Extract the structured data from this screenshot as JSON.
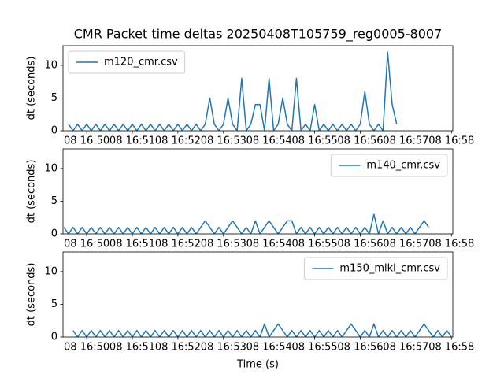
{
  "chart_data": [
    {
      "type": "line",
      "title": "CMR Packet time deltas 20250408T105759_reg0005-8007",
      "y_label": "dt (seconds)",
      "xlim": [
        1009.48,
        1018.03
      ],
      "ylim": [
        0,
        13
      ],
      "yticks": [
        0,
        5,
        10
      ],
      "xticks": [
        {
          "value": 1010,
          "label": "08 16:50"
        },
        {
          "value": 1011,
          "label": "08 16:51"
        },
        {
          "value": 1012,
          "label": "08 16:52"
        },
        {
          "value": 1013,
          "label": "08 16:53"
        },
        {
          "value": 1014,
          "label": "08 16:54"
        },
        {
          "value": 1015,
          "label": "08 16:55"
        },
        {
          "value": 1016,
          "label": "08 16:56"
        },
        {
          "value": 1017,
          "label": "08 16:57"
        },
        {
          "value": 1018,
          "label": "08 16:58"
        }
      ],
      "legend": "upper left",
      "series": [
        {
          "name": "m120_cmr.csv",
          "color": "#1f77b4",
          "x": [
            1009.6,
            1009.7,
            1009.8,
            1009.9,
            1010.0,
            1010.1,
            1010.2,
            1010.3,
            1010.4,
            1010.5,
            1010.6,
            1010.7,
            1010.8,
            1010.9,
            1011.0,
            1011.1,
            1011.2,
            1011.3,
            1011.4,
            1011.5,
            1011.6,
            1011.7,
            1011.8,
            1011.9,
            1012.0,
            1012.1,
            1012.2,
            1012.3,
            1012.4,
            1012.5,
            1012.6,
            1012.7,
            1012.8,
            1012.9,
            1013.0,
            1013.1,
            1013.2,
            1013.3,
            1013.4,
            1013.5,
            1013.6,
            1013.7,
            1013.8,
            1013.9,
            1014.0,
            1014.1,
            1014.2,
            1014.3,
            1014.4,
            1014.5,
            1014.6,
            1014.7,
            1014.8,
            1014.9,
            1015.0,
            1015.1,
            1015.2,
            1015.3,
            1015.4,
            1015.5,
            1015.6,
            1015.7,
            1015.8,
            1015.9,
            1016.0,
            1016.1,
            1016.2,
            1016.3,
            1016.4,
            1016.5,
            1016.6,
            1016.7,
            1016.8
          ],
          "values": [
            1,
            0,
            1,
            0,
            1,
            0,
            1,
            0,
            1,
            0,
            1,
            0,
            1,
            0,
            1,
            0,
            1,
            0,
            1,
            0,
            1,
            0,
            1,
            0,
            1,
            0,
            1,
            0,
            1,
            0,
            1,
            5,
            1,
            0,
            1,
            5,
            1,
            0,
            8,
            0,
            1,
            4,
            4,
            0,
            8,
            0,
            1,
            5,
            1,
            0,
            8,
            0,
            1,
            0,
            4,
            0,
            1,
            0,
            1,
            0,
            1,
            0,
            1,
            0,
            1,
            6,
            1,
            0,
            1,
            0,
            12,
            4,
            1
          ]
        }
      ]
    },
    {
      "type": "line",
      "y_label": "dt (seconds)",
      "xlim": [
        1009.48,
        1018.03
      ],
      "ylim": [
        0,
        13
      ],
      "yticks": [
        0,
        5,
        10
      ],
      "xticks": [
        {
          "value": 1010,
          "label": "08 16:50"
        },
        {
          "value": 1011,
          "label": "08 16:51"
        },
        {
          "value": 1012,
          "label": "08 16:52"
        },
        {
          "value": 1013,
          "label": "08 16:53"
        },
        {
          "value": 1014,
          "label": "08 16:54"
        },
        {
          "value": 1015,
          "label": "08 16:55"
        },
        {
          "value": 1016,
          "label": "08 16:56"
        },
        {
          "value": 1017,
          "label": "08 16:57"
        },
        {
          "value": 1018,
          "label": "08 16:58"
        }
      ],
      "legend": "upper right",
      "series": [
        {
          "name": "m140_cmr.csv",
          "color": "#1f77b4",
          "x": [
            1009.5,
            1009.6,
            1009.7,
            1009.8,
            1009.9,
            1010.0,
            1010.1,
            1010.2,
            1010.3,
            1010.4,
            1010.5,
            1010.6,
            1010.7,
            1010.8,
            1010.9,
            1011.0,
            1011.1,
            1011.2,
            1011.3,
            1011.4,
            1011.5,
            1011.6,
            1011.7,
            1011.8,
            1011.9,
            1012.0,
            1012.1,
            1012.2,
            1012.3,
            1012.4,
            1012.5,
            1012.6,
            1012.7,
            1012.8,
            1012.9,
            1013.0,
            1013.1,
            1013.2,
            1013.3,
            1013.4,
            1013.5,
            1013.6,
            1013.7,
            1013.8,
            1013.9,
            1014.0,
            1014.1,
            1014.2,
            1014.3,
            1014.4,
            1014.5,
            1014.6,
            1014.7,
            1014.8,
            1014.9,
            1015.0,
            1015.1,
            1015.2,
            1015.3,
            1015.4,
            1015.5,
            1015.6,
            1015.7,
            1015.8,
            1015.9,
            1016.0,
            1016.1,
            1016.2,
            1016.3,
            1016.4,
            1016.5,
            1016.6,
            1016.7,
            1016.8,
            1016.9,
            1017.0,
            1017.1,
            1017.2,
            1017.3,
            1017.4,
            1017.5
          ],
          "values": [
            1,
            0,
            1,
            0,
            1,
            0,
            1,
            0,
            1,
            0,
            1,
            0,
            1,
            0,
            1,
            0,
            1,
            0,
            1,
            0,
            1,
            0,
            1,
            0,
            1,
            0,
            1,
            0,
            1,
            0,
            1,
            2,
            1,
            0,
            1,
            0,
            1,
            2,
            1,
            0,
            1,
            0,
            2,
            0,
            1,
            2,
            1,
            0,
            1,
            2,
            2,
            0,
            1,
            0,
            1,
            0,
            1,
            0,
            1,
            0,
            1,
            0,
            1,
            0,
            1,
            0,
            1,
            0,
            3,
            0,
            2,
            0,
            1,
            0,
            1,
            0,
            1,
            0,
            1,
            2,
            1
          ]
        }
      ]
    },
    {
      "type": "line",
      "y_label": "dt (seconds)",
      "x_label": "Time (s)",
      "xlim": [
        1009.48,
        1018.03
      ],
      "ylim": [
        0,
        13
      ],
      "yticks": [
        0,
        5,
        10
      ],
      "xticks": [
        {
          "value": 1010,
          "label": "08 16:50"
        },
        {
          "value": 1011,
          "label": "08 16:51"
        },
        {
          "value": 1012,
          "label": "08 16:52"
        },
        {
          "value": 1013,
          "label": "08 16:53"
        },
        {
          "value": 1014,
          "label": "08 16:54"
        },
        {
          "value": 1015,
          "label": "08 16:55"
        },
        {
          "value": 1016,
          "label": "08 16:56"
        },
        {
          "value": 1017,
          "label": "08 16:57"
        },
        {
          "value": 1018,
          "label": "08 16:58"
        }
      ],
      "legend": "upper right",
      "series": [
        {
          "name": "m150_miki_cmr.csv",
          "color": "#1f77b4",
          "x": [
            1009.7,
            1009.8,
            1009.9,
            1010.0,
            1010.1,
            1010.2,
            1010.3,
            1010.4,
            1010.5,
            1010.6,
            1010.7,
            1010.8,
            1010.9,
            1011.0,
            1011.1,
            1011.2,
            1011.3,
            1011.4,
            1011.5,
            1011.6,
            1011.7,
            1011.8,
            1011.9,
            1012.0,
            1012.1,
            1012.2,
            1012.3,
            1012.4,
            1012.5,
            1012.6,
            1012.7,
            1012.8,
            1012.9,
            1013.0,
            1013.1,
            1013.2,
            1013.3,
            1013.4,
            1013.5,
            1013.6,
            1013.7,
            1013.8,
            1013.9,
            1014.0,
            1014.1,
            1014.2,
            1014.3,
            1014.4,
            1014.5,
            1014.6,
            1014.7,
            1014.8,
            1014.9,
            1015.0,
            1015.1,
            1015.2,
            1015.3,
            1015.4,
            1015.5,
            1015.6,
            1015.7,
            1015.8,
            1015.9,
            1016.0,
            1016.1,
            1016.2,
            1016.3,
            1016.4,
            1016.5,
            1016.6,
            1016.7,
            1016.8,
            1016.9,
            1017.0,
            1017.1,
            1017.2,
            1017.3,
            1017.4,
            1017.5,
            1017.6,
            1017.7,
            1017.8,
            1017.9,
            1018.0
          ],
          "values": [
            1,
            0,
            1,
            0,
            1,
            0,
            1,
            0,
            1,
            0,
            1,
            0,
            1,
            0,
            1,
            0,
            1,
            0,
            1,
            0,
            1,
            0,
            1,
            0,
            1,
            0,
            1,
            0,
            1,
            0,
            1,
            0,
            1,
            0,
            1,
            0,
            1,
            0,
            1,
            0,
            1,
            0,
            2,
            0,
            1,
            2,
            1,
            0,
            1,
            0,
            1,
            0,
            1,
            0,
            1,
            0,
            1,
            0,
            1,
            0,
            1,
            2,
            1,
            0,
            1,
            0,
            2,
            0,
            1,
            0,
            1,
            0,
            1,
            0,
            1,
            0,
            1,
            2,
            1,
            0,
            1,
            0,
            1,
            0
          ]
        }
      ]
    }
  ]
}
